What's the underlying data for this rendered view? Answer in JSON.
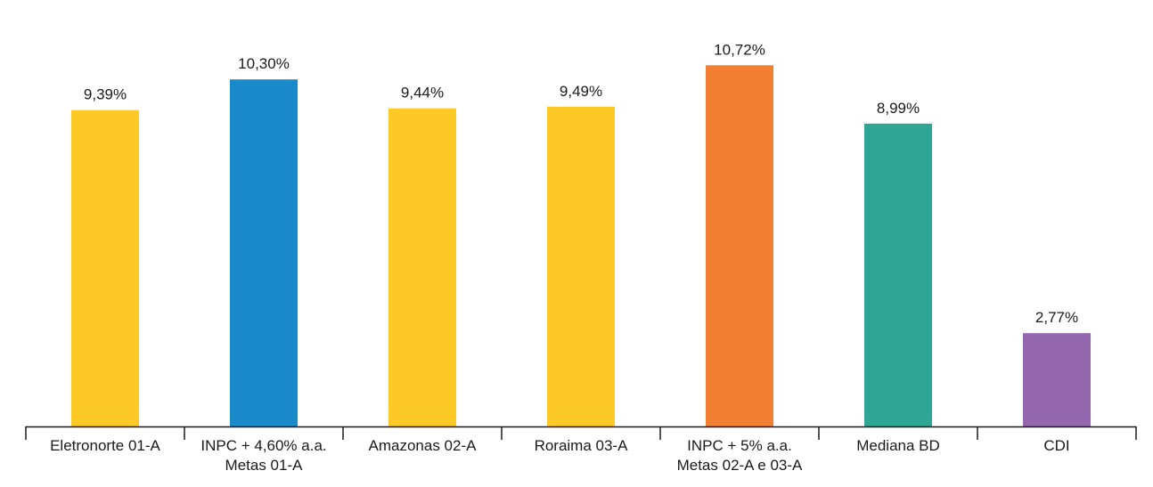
{
  "chart_data": {
    "type": "bar",
    "title": "",
    "xlabel": "",
    "ylabel": "",
    "ylim": [
      0,
      11
    ],
    "grid": false,
    "legend": "none",
    "categories": [
      [
        "Eletronorte 01-A"
      ],
      [
        "INPC + 4,60% a.a.",
        "Metas 01-A"
      ],
      [
        "Amazonas 02-A"
      ],
      [
        "Roraima 03-A"
      ],
      [
        "INPC + 5% a.a.",
        "Metas 02-A e 03-A"
      ],
      [
        "Mediana BD"
      ],
      [
        "CDI"
      ]
    ],
    "values": [
      9.39,
      10.3,
      9.44,
      9.49,
      10.72,
      8.99,
      2.77
    ],
    "value_labels": [
      "9,39%",
      "10,30%",
      "9,44%",
      "9,49%",
      "10,72%",
      "8,99%",
      "2,77%"
    ],
    "colors": [
      "#FDC926",
      "#1A8ACB",
      "#FDC926",
      "#FDC926",
      "#F37F32",
      "#2EA595",
      "#9466AE"
    ]
  }
}
